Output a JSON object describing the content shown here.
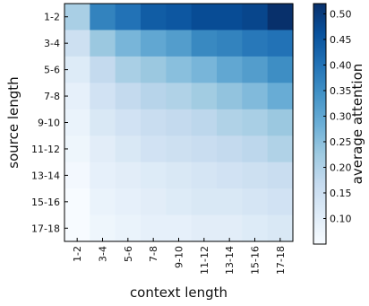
{
  "chart_data": {
    "type": "heatmap",
    "title": "",
    "xlabel": "context length",
    "ylabel": "source length",
    "x_categories": [
      "1-2",
      "3-4",
      "5-6",
      "7-8",
      "9-10",
      "11-12",
      "13-14",
      "15-16",
      "17-18"
    ],
    "y_categories": [
      "1-2",
      "3-4",
      "5-6",
      "7-8",
      "9-10",
      "11-12",
      "13-14",
      "15-16",
      "17-18"
    ],
    "values": [
      [
        0.21,
        0.37,
        0.4,
        0.44,
        0.45,
        0.47,
        0.47,
        0.48,
        0.52
      ],
      [
        0.15,
        0.23,
        0.27,
        0.3,
        0.32,
        0.36,
        0.37,
        0.39,
        0.4
      ],
      [
        0.11,
        0.17,
        0.21,
        0.23,
        0.25,
        0.27,
        0.3,
        0.32,
        0.35
      ],
      [
        0.09,
        0.14,
        0.17,
        0.19,
        0.2,
        0.22,
        0.24,
        0.26,
        0.29
      ],
      [
        0.08,
        0.12,
        0.14,
        0.16,
        0.17,
        0.18,
        0.2,
        0.21,
        0.23
      ],
      [
        0.07,
        0.1,
        0.12,
        0.14,
        0.15,
        0.16,
        0.17,
        0.18,
        0.2
      ],
      [
        0.06,
        0.09,
        0.1,
        0.11,
        0.12,
        0.13,
        0.14,
        0.15,
        0.16
      ],
      [
        0.05,
        0.08,
        0.09,
        0.1,
        0.11,
        0.12,
        0.12,
        0.13,
        0.14
      ],
      [
        0.04,
        0.07,
        0.08,
        0.09,
        0.09,
        0.1,
        0.1,
        0.11,
        0.12
      ]
    ],
    "colorbar": {
      "label": "average attention",
      "ticks": [
        "0.10",
        "0.15",
        "0.20",
        "0.25",
        "0.30",
        "0.35",
        "0.40",
        "0.45",
        "0.50"
      ],
      "range": [
        0.05,
        0.52
      ],
      "colormap": "Blues"
    }
  }
}
